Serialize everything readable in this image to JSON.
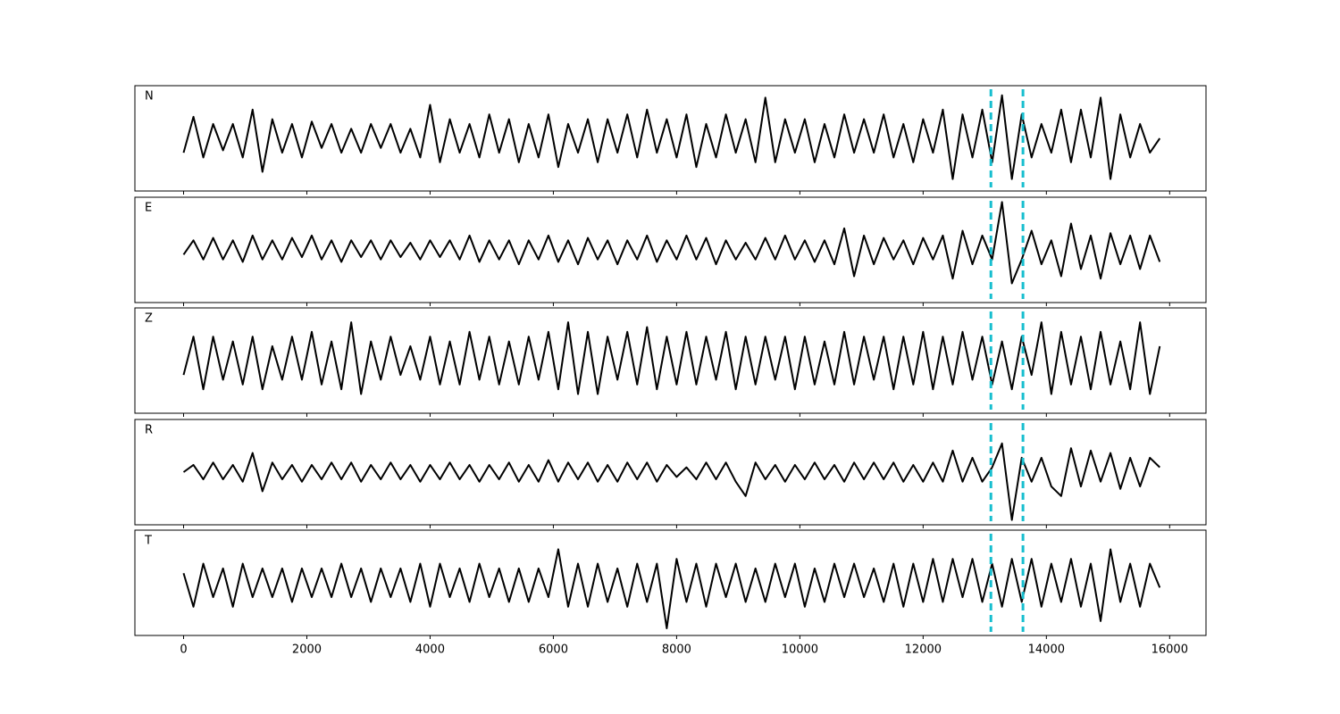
{
  "chart_data": {
    "type": "line",
    "x": [
      0,
      160,
      320,
      480,
      640,
      800,
      960,
      1120,
      1280,
      1440,
      1600,
      1760,
      1920,
      2080,
      2240,
      2400,
      2560,
      2720,
      2880,
      3040,
      3200,
      3360,
      3520,
      3680,
      3840,
      4000,
      4160,
      4320,
      4480,
      4640,
      4800,
      4960,
      5120,
      5280,
      5440,
      5600,
      5760,
      5920,
      6080,
      6240,
      6400,
      6560,
      6720,
      6880,
      7040,
      7200,
      7360,
      7520,
      7680,
      7840,
      8000,
      8160,
      8320,
      8480,
      8640,
      8800,
      8960,
      9120,
      9280,
      9440,
      9600,
      9760,
      9920,
      10080,
      10240,
      10400,
      10560,
      10720,
      10880,
      11040,
      11200,
      11360,
      11520,
      11680,
      11840,
      12000,
      12160,
      12320,
      12480,
      12640,
      12800,
      12960,
      13120,
      13280,
      13440,
      13600,
      13760,
      13920,
      14080,
      14240,
      14400,
      14560,
      14720,
      14880,
      15040,
      15200,
      15360,
      15520,
      15680,
      15840
    ],
    "xlim": [
      -790,
      16590
    ],
    "xticks": [
      0,
      2000,
      4000,
      6000,
      8000,
      10000,
      12000,
      14000,
      16000
    ],
    "ylim": [
      -1.1,
      1.1
    ],
    "vlines": [
      13100,
      13620
    ],
    "vline_color": "#17becf",
    "series": [
      {
        "name": "N",
        "color": "#000000",
        "values": [
          -0.3,
          0.45,
          -0.4,
          0.3,
          -0.25,
          0.3,
          -0.4,
          0.6,
          -0.7,
          0.4,
          -0.3,
          0.3,
          -0.4,
          0.35,
          -0.2,
          0.3,
          -0.3,
          0.2,
          -0.3,
          0.3,
          -0.2,
          0.3,
          -0.3,
          0.2,
          -0.4,
          0.7,
          -0.5,
          0.4,
          -0.3,
          0.3,
          -0.4,
          0.5,
          -0.3,
          0.4,
          -0.5,
          0.3,
          -0.4,
          0.5,
          -0.6,
          0.3,
          -0.3,
          0.4,
          -0.5,
          0.4,
          -0.3,
          0.5,
          -0.4,
          0.6,
          -0.3,
          0.4,
          -0.4,
          0.5,
          -0.6,
          0.3,
          -0.4,
          0.5,
          -0.3,
          0.4,
          -0.5,
          0.85,
          -0.5,
          0.4,
          -0.3,
          0.4,
          -0.5,
          0.3,
          -0.4,
          0.5,
          -0.3,
          0.4,
          -0.3,
          0.5,
          -0.4,
          0.3,
          -0.5,
          0.4,
          -0.3,
          0.6,
          -0.85,
          0.5,
          -0.4,
          0.6,
          -0.5,
          0.9,
          -0.85,
          0.5,
          -0.4,
          0.3,
          -0.3,
          0.6,
          -0.5,
          0.6,
          -0.4,
          0.85,
          -0.85,
          0.5,
          -0.4,
          0.3,
          -0.3,
          0.0
        ]
      },
      {
        "name": "E",
        "color": "#000000",
        "values": [
          -0.1,
          0.2,
          -0.2,
          0.25,
          -0.2,
          0.2,
          -0.25,
          0.3,
          -0.2,
          0.2,
          -0.2,
          0.25,
          -0.15,
          0.3,
          -0.2,
          0.2,
          -0.25,
          0.2,
          -0.15,
          0.2,
          -0.2,
          0.2,
          -0.15,
          0.15,
          -0.2,
          0.2,
          -0.15,
          0.2,
          -0.2,
          0.3,
          -0.25,
          0.2,
          -0.2,
          0.2,
          -0.3,
          0.2,
          -0.2,
          0.3,
          -0.25,
          0.2,
          -0.3,
          0.25,
          -0.2,
          0.2,
          -0.3,
          0.2,
          -0.2,
          0.3,
          -0.25,
          0.2,
          -0.2,
          0.3,
          -0.2,
          0.25,
          -0.3,
          0.2,
          -0.2,
          0.15,
          -0.2,
          0.25,
          -0.2,
          0.3,
          -0.2,
          0.2,
          -0.25,
          0.2,
          -0.3,
          0.45,
          -0.55,
          0.3,
          -0.3,
          0.25,
          -0.2,
          0.2,
          -0.3,
          0.25,
          -0.2,
          0.3,
          -0.6,
          0.4,
          -0.3,
          0.3,
          -0.2,
          1.0,
          -0.7,
          -0.2,
          0.4,
          -0.3,
          0.2,
          -0.55,
          0.55,
          -0.4,
          0.3,
          -0.6,
          0.35,
          -0.3,
          0.3,
          -0.4,
          0.3,
          -0.25
        ]
      },
      {
        "name": "Z",
        "color": "#000000",
        "values": [
          -0.3,
          0.5,
          -0.6,
          0.5,
          -0.4,
          0.4,
          -0.5,
          0.5,
          -0.6,
          0.3,
          -0.4,
          0.5,
          -0.4,
          0.6,
          -0.5,
          0.4,
          -0.6,
          0.8,
          -0.7,
          0.4,
          -0.4,
          0.5,
          -0.3,
          0.3,
          -0.4,
          0.5,
          -0.5,
          0.4,
          -0.5,
          0.6,
          -0.4,
          0.5,
          -0.5,
          0.4,
          -0.5,
          0.5,
          -0.4,
          0.6,
          -0.6,
          0.8,
          -0.7,
          0.6,
          -0.7,
          0.5,
          -0.4,
          0.6,
          -0.5,
          0.7,
          -0.6,
          0.5,
          -0.5,
          0.6,
          -0.5,
          0.5,
          -0.4,
          0.6,
          -0.6,
          0.5,
          -0.5,
          0.5,
          -0.4,
          0.5,
          -0.6,
          0.5,
          -0.5,
          0.4,
          -0.5,
          0.6,
          -0.5,
          0.5,
          -0.4,
          0.5,
          -0.6,
          0.5,
          -0.5,
          0.6,
          -0.6,
          0.5,
          -0.5,
          0.6,
          -0.4,
          0.5,
          -0.5,
          0.4,
          -0.6,
          0.5,
          -0.3,
          0.8,
          -0.7,
          0.6,
          -0.5,
          0.5,
          -0.6,
          0.6,
          -0.5,
          0.4,
          -0.6,
          0.8,
          -0.7,
          0.3
        ]
      },
      {
        "name": "R",
        "color": "#000000",
        "values": [
          0,
          0.15,
          -0.15,
          0.2,
          -0.15,
          0.15,
          -0.2,
          0.4,
          -0.4,
          0.2,
          -0.15,
          0.15,
          -0.2,
          0.15,
          -0.15,
          0.2,
          -0.15,
          0.2,
          -0.2,
          0.15,
          -0.15,
          0.2,
          -0.15,
          0.15,
          -0.2,
          0.15,
          -0.15,
          0.2,
          -0.15,
          0.15,
          -0.2,
          0.15,
          -0.15,
          0.2,
          -0.2,
          0.15,
          -0.2,
          0.25,
          -0.2,
          0.2,
          -0.15,
          0.2,
          -0.2,
          0.15,
          -0.2,
          0.2,
          -0.15,
          0.2,
          -0.2,
          0.15,
          -0.1,
          0.1,
          -0.15,
          0.2,
          -0.15,
          0.2,
          -0.2,
          -0.5,
          0.2,
          -0.15,
          0.15,
          -0.2,
          0.15,
          -0.15,
          0.2,
          -0.15,
          0.15,
          -0.2,
          0.2,
          -0.15,
          0.2,
          -0.15,
          0.2,
          -0.2,
          0.15,
          -0.2,
          0.2,
          -0.2,
          0.45,
          -0.2,
          0.3,
          -0.2,
          0.1,
          0.6,
          -1.0,
          0.3,
          -0.2,
          0.3,
          -0.3,
          -0.5,
          0.5,
          -0.3,
          0.45,
          -0.2,
          0.4,
          -0.35,
          0.3,
          -0.3,
          0.3,
          0.1
        ]
      },
      {
        "name": "T",
        "color": "#000000",
        "values": [
          0.2,
          -0.5,
          0.4,
          -0.3,
          0.3,
          -0.5,
          0.4,
          -0.3,
          0.3,
          -0.3,
          0.3,
          -0.4,
          0.3,
          -0.3,
          0.3,
          -0.3,
          0.4,
          -0.3,
          0.3,
          -0.4,
          0.3,
          -0.3,
          0.3,
          -0.4,
          0.4,
          -0.5,
          0.4,
          -0.3,
          0.3,
          -0.4,
          0.4,
          -0.3,
          0.3,
          -0.4,
          0.3,
          -0.4,
          0.3,
          -0.3,
          0.7,
          -0.5,
          0.4,
          -0.5,
          0.4,
          -0.4,
          0.3,
          -0.5,
          0.4,
          -0.4,
          0.4,
          -0.95,
          0.5,
          -0.4,
          0.4,
          -0.5,
          0.4,
          -0.3,
          0.4,
          -0.4,
          0.3,
          -0.4,
          0.4,
          -0.3,
          0.4,
          -0.5,
          0.3,
          -0.4,
          0.4,
          -0.3,
          0.4,
          -0.3,
          0.3,
          -0.4,
          0.4,
          -0.5,
          0.4,
          -0.4,
          0.5,
          -0.4,
          0.5,
          -0.3,
          0.5,
          -0.4,
          0.4,
          -0.5,
          0.5,
          -0.4,
          0.5,
          -0.5,
          0.4,
          -0.4,
          0.5,
          -0.5,
          0.4,
          -0.8,
          0.7,
          -0.4,
          0.4,
          -0.5,
          0.4,
          -0.1
        ]
      }
    ]
  }
}
